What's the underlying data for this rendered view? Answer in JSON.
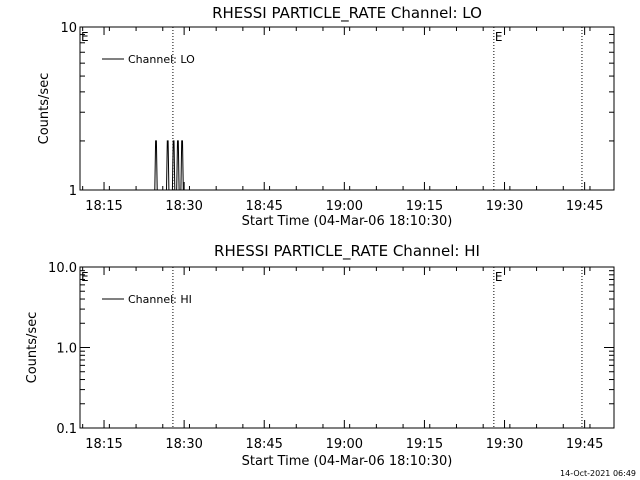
{
  "chart_data": [
    {
      "type": "line",
      "title": "RHESSI PARTICLE_RATE Channel: LO",
      "xlabel": "Start Time (04-Mar-06 18:10:30)",
      "ylabel": "Counts/sec",
      "yscale": "log",
      "ylim": [
        1,
        10
      ],
      "y_tick_labels": [
        "1",
        "10"
      ],
      "x_tick_labels": [
        "18:15",
        "18:30",
        "18:45",
        "19:00",
        "19:15",
        "19:30",
        "19:45"
      ],
      "x_ticks_min": [
        4.5,
        19.5,
        34.5,
        49.5,
        64.5,
        79.5,
        94.5
      ],
      "xlim_min": [
        0,
        100
      ],
      "legend": {
        "position": "top-left",
        "entries": [
          "Channel: LO"
        ]
      },
      "grid": false,
      "markers": [
        {
          "label": "E",
          "x_min": 0,
          "style": "none"
        },
        {
          "label": "",
          "x_min": 17.4,
          "style": "dotted"
        },
        {
          "label": "E",
          "x_min": 77.5,
          "style": "dotted"
        },
        {
          "label": "",
          "x_min": 94.0,
          "style": "dotted"
        }
      ],
      "series": [
        {
          "name": "Channel: LO",
          "x_min": [
            14.0,
            14.15,
            14.3,
            14.45,
            16.2,
            16.35,
            16.5,
            16.65,
            16.8,
            17.3,
            17.45,
            17.6,
            17.75,
            17.9,
            18.1,
            18.25,
            18.4,
            18.55,
            18.7,
            18.9,
            19.05,
            19.2,
            19.35
          ],
          "y": [
            1,
            2,
            2,
            1,
            1,
            2,
            2,
            1,
            1,
            1,
            2,
            2,
            1,
            1,
            1,
            2,
            2,
            1,
            1,
            1,
            2,
            2,
            1
          ]
        }
      ]
    },
    {
      "type": "line",
      "title": "RHESSI PARTICLE_RATE Channel: HI",
      "xlabel": "Start Time (04-Mar-06 18:10:30)",
      "ylabel": "Counts/sec",
      "yscale": "log",
      "ylim": [
        0.1,
        10
      ],
      "y_tick_labels": [
        "0.1",
        "1.0",
        "10.0"
      ],
      "x_tick_labels": [
        "18:15",
        "18:30",
        "18:45",
        "19:00",
        "19:15",
        "19:30",
        "19:45"
      ],
      "x_ticks_min": [
        4.5,
        19.5,
        34.5,
        49.5,
        64.5,
        79.5,
        94.5
      ],
      "xlim_min": [
        0,
        100
      ],
      "legend": {
        "position": "top-left",
        "entries": [
          "Channel: HI"
        ]
      },
      "grid": false,
      "markers": [
        {
          "label": "E",
          "x_min": 0,
          "style": "none"
        },
        {
          "label": "",
          "x_min": 17.4,
          "style": "dotted"
        },
        {
          "label": "E",
          "x_min": 77.5,
          "style": "dotted"
        },
        {
          "label": "",
          "x_min": 94.0,
          "style": "dotted"
        }
      ],
      "series": [
        {
          "name": "Channel: HI",
          "x_min": [],
          "y": []
        }
      ]
    }
  ],
  "footer": {
    "timestamp": "14-Oct-2021 06:49"
  }
}
